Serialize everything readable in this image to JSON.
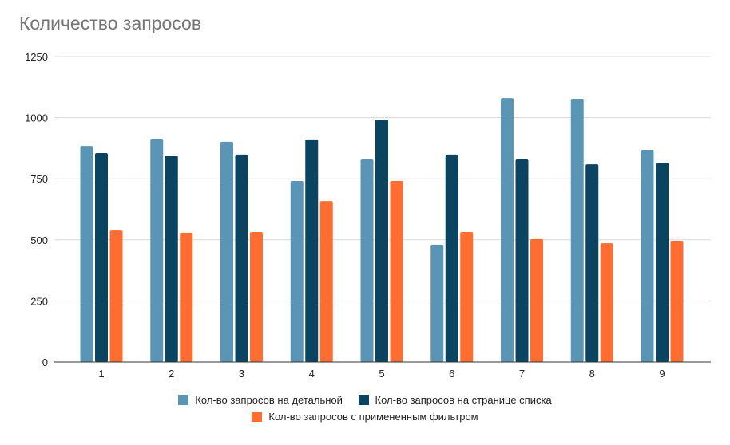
{
  "chart_data": {
    "type": "bar",
    "title": "Количество запросов",
    "categories": [
      "1",
      "2",
      "3",
      "4",
      "5",
      "6",
      "7",
      "8",
      "9"
    ],
    "ylim": [
      0,
      1250
    ],
    "yticks": [
      0,
      250,
      500,
      750,
      1000,
      1250
    ],
    "grid": true,
    "legend_position": "bottom",
    "series": [
      {
        "name": "Кол-во запросов на детальной",
        "color": "#5b95b6",
        "values": [
          884,
          914,
          901,
          741,
          829,
          480,
          1080,
          1077,
          868
        ]
      },
      {
        "name": "Кол-во запросов на странице списка",
        "color": "#0b4461",
        "values": [
          855,
          845,
          849,
          911,
          992,
          849,
          829,
          809,
          816
        ]
      },
      {
        "name": "Кол-во запросов с примененным фильтром",
        "color": "#ff6d31",
        "values": [
          538,
          529,
          532,
          659,
          741,
          532,
          503,
          486,
          496
        ]
      }
    ]
  }
}
